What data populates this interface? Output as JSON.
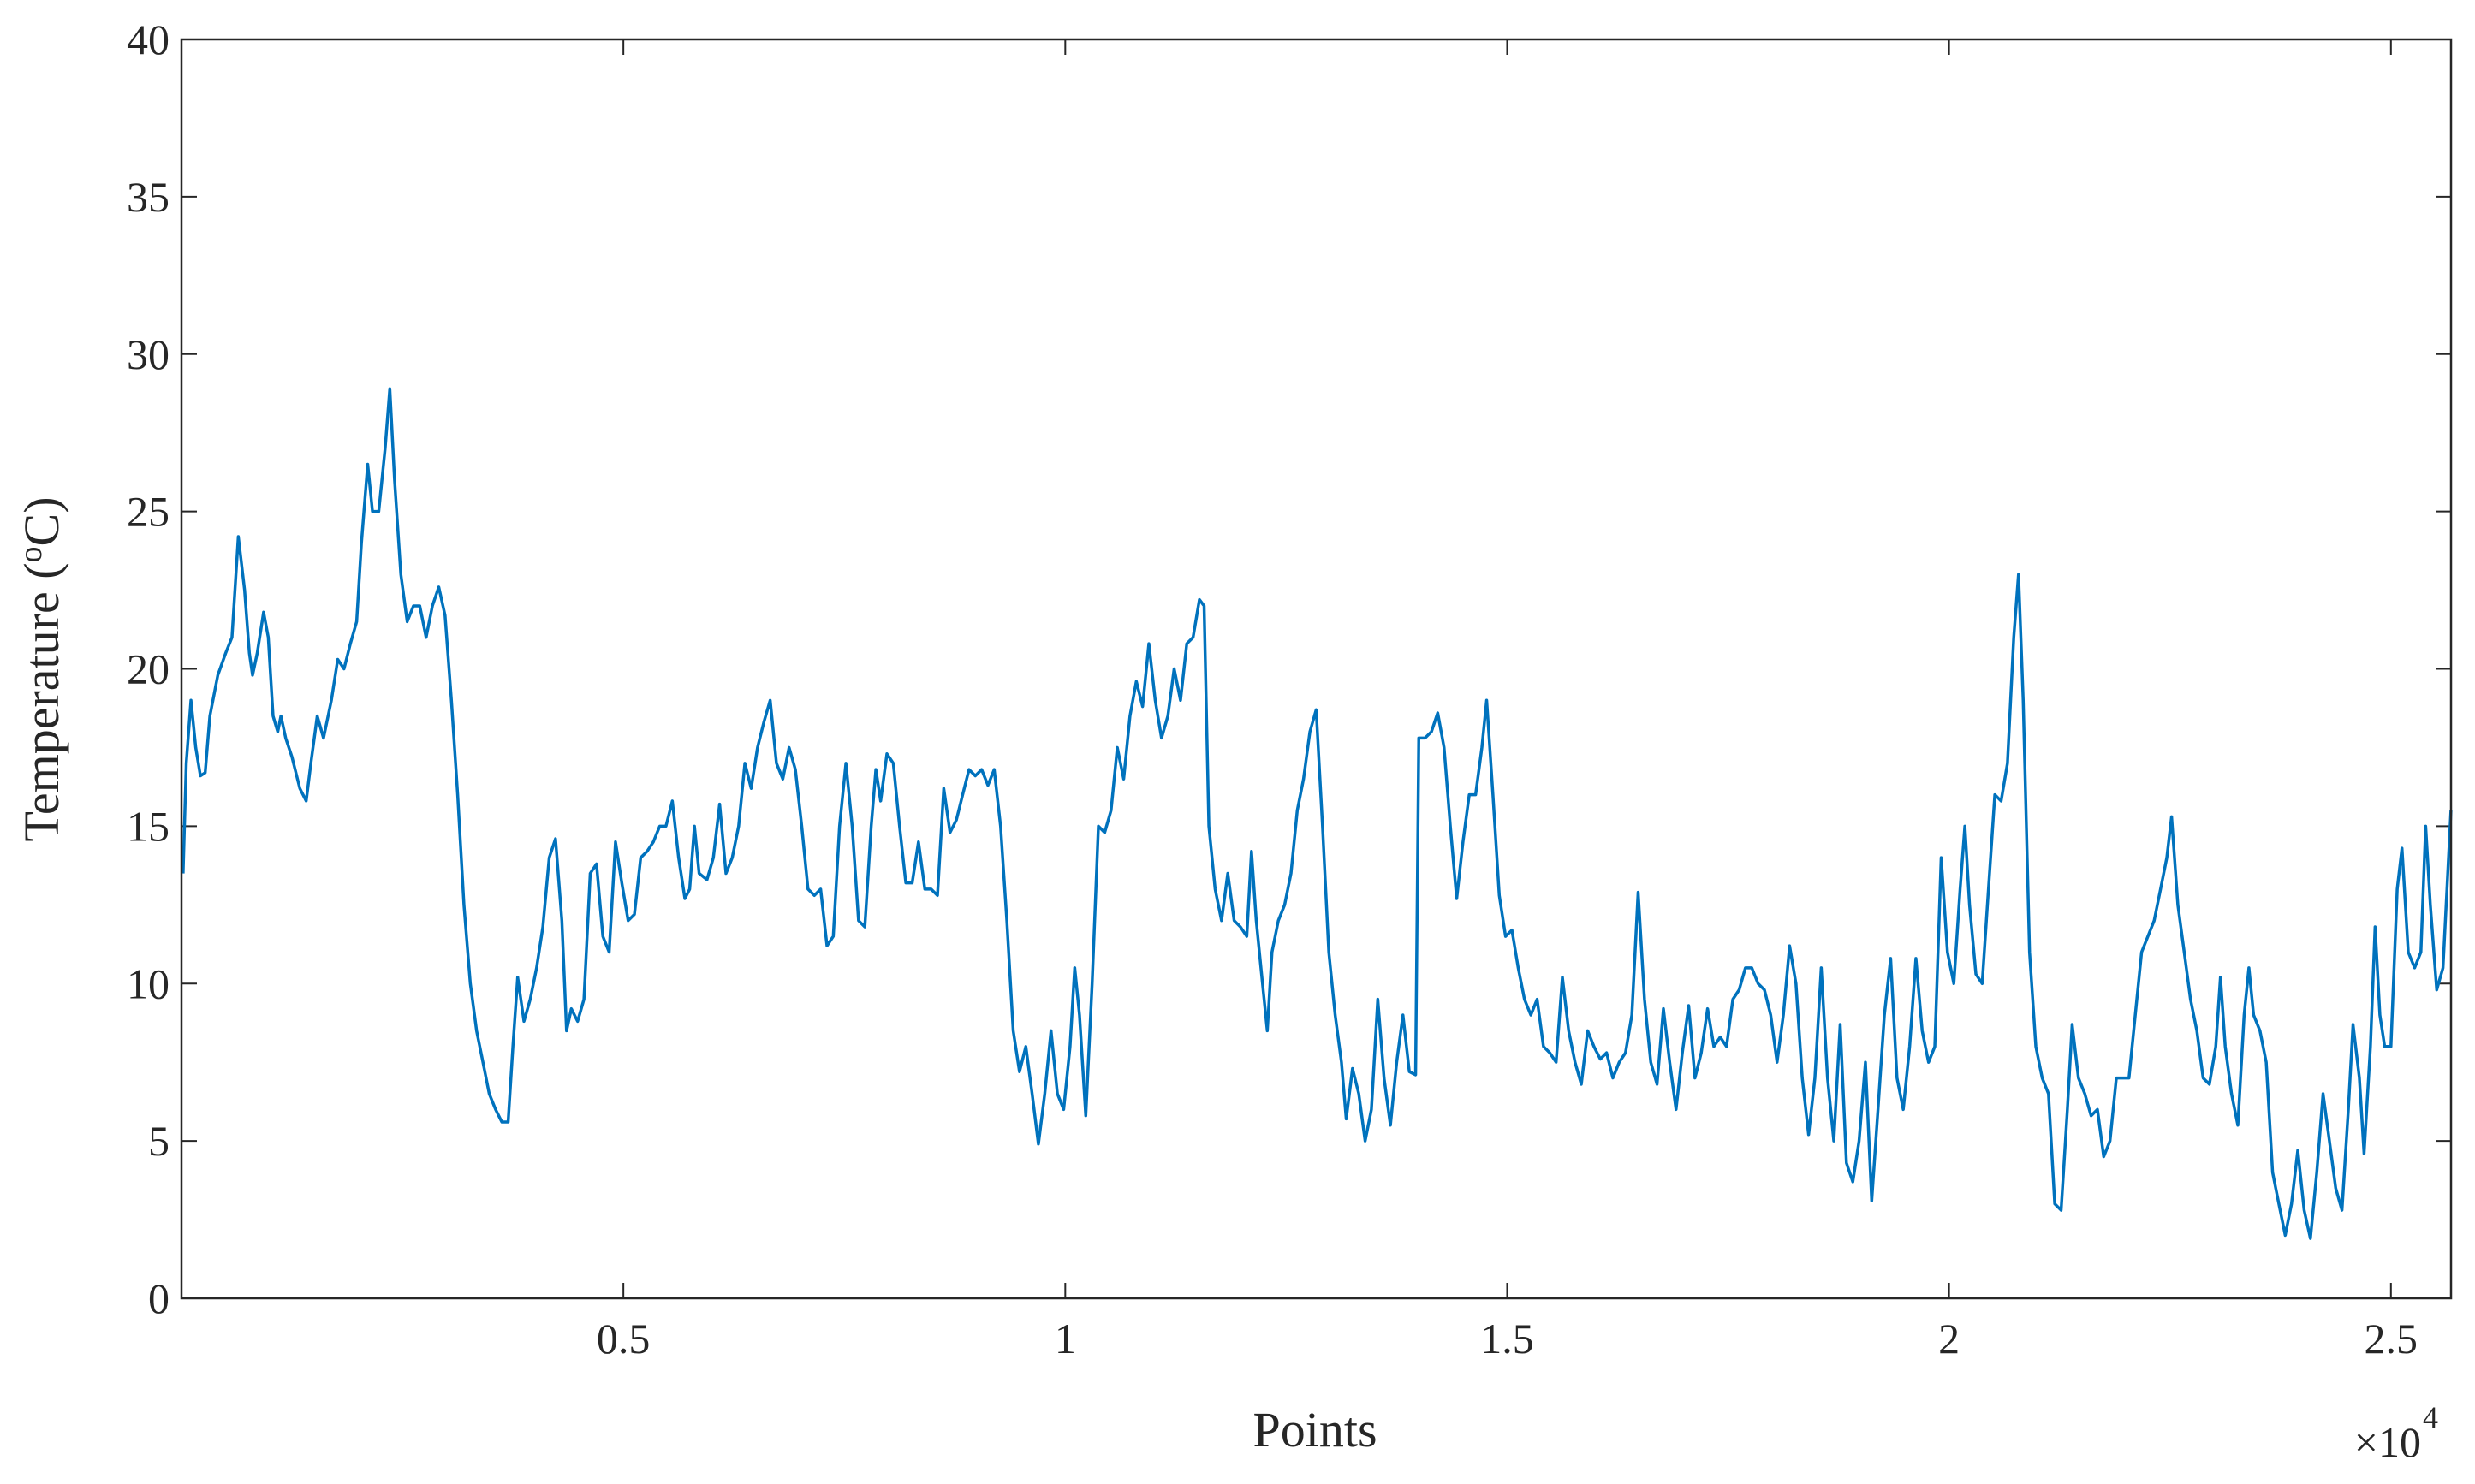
{
  "chart_data": {
    "type": "line",
    "xlabel": "Points",
    "ylabel_parts": [
      "Temperature (",
      "o",
      "C)"
    ],
    "x_exponent_base": "×10",
    "x_exponent": 4,
    "xlim": [
      0,
      25680
    ],
    "ylim": [
      0,
      40
    ],
    "xticks": [
      {
        "value": 5000,
        "label": "0.5"
      },
      {
        "value": 10000,
        "label": "1"
      },
      {
        "value": 15000,
        "label": "1.5"
      },
      {
        "value": 20000,
        "label": "2"
      },
      {
        "value": 25000,
        "label": "2.5"
      }
    ],
    "yticks": [
      0,
      5,
      10,
      15,
      20,
      25,
      30,
      35,
      40
    ],
    "grid": false,
    "x": [
      18,
      54,
      107,
      161,
      214,
      268,
      321,
      411,
      500,
      571,
      643,
      714,
      768,
      804,
      857,
      929,
      982,
      1036,
      1089,
      1125,
      1179,
      1250,
      1339,
      1411,
      1464,
      1536,
      1607,
      1696,
      1768,
      1839,
      1911,
      1982,
      2036,
      2107,
      2161,
      2232,
      2304,
      2357,
      2411,
      2482,
      2554,
      2625,
      2696,
      2768,
      2839,
      2911,
      2982,
      3054,
      3125,
      3196,
      3268,
      3339,
      3411,
      3482,
      3554,
      3625,
      3696,
      3750,
      3804,
      3875,
      3946,
      4018,
      4089,
      4161,
      4232,
      4304,
      4357,
      4411,
      4482,
      4554,
      4625,
      4696,
      4768,
      4839,
      4911,
      4982,
      5054,
      5125,
      5196,
      5268,
      5339,
      5411,
      5482,
      5554,
      5625,
      5696,
      5750,
      5804,
      5857,
      5946,
      6018,
      6089,
      6161,
      6232,
      6304,
      6375,
      6446,
      6518,
      6589,
      6661,
      6732,
      6804,
      6875,
      6946,
      7018,
      7089,
      7161,
      7232,
      7304,
      7375,
      7446,
      7518,
      7589,
      7661,
      7732,
      7804,
      7857,
      7911,
      7982,
      8054,
      8125,
      8196,
      8268,
      8339,
      8411,
      8482,
      8554,
      8625,
      8696,
      8768,
      8839,
      8911,
      8982,
      9054,
      9125,
      9196,
      9268,
      9339,
      9411,
      9482,
      9554,
      9625,
      9696,
      9768,
      9839,
      9911,
      9982,
      10054,
      10107,
      10161,
      10232,
      10304,
      10375,
      10446,
      10518,
      10589,
      10661,
      10732,
      10804,
      10875,
      10946,
      11018,
      11089,
      11161,
      11232,
      11304,
      11375,
      11446,
      11518,
      11571,
      11625,
      11696,
      11768,
      11839,
      11911,
      11982,
      12054,
      12107,
      12161,
      12232,
      12286,
      12339,
      12411,
      12482,
      12554,
      12625,
      12696,
      12768,
      12839,
      12911,
      12982,
      13054,
      13125,
      13179,
      13250,
      13321,
      13393,
      13464,
      13536,
      13607,
      13679,
      13750,
      13821,
      13893,
      13964,
      14000,
      14071,
      14143,
      14214,
      14286,
      14357,
      14429,
      14500,
      14571,
      14643,
      14714,
      14768,
      14839,
      14911,
      14982,
      15054,
      15125,
      15196,
      15268,
      15339,
      15411,
      15482,
      15554,
      15625,
      15696,
      15768,
      15839,
      15911,
      15982,
      16054,
      16125,
      16196,
      16268,
      16339,
      16411,
      16482,
      16554,
      16625,
      16696,
      16768,
      16839,
      16911,
      16982,
      17054,
      17125,
      17196,
      17268,
      17339,
      17411,
      17482,
      17554,
      17625,
      17696,
      17768,
      17839,
      17911,
      17982,
      18054,
      18125,
      18196,
      18268,
      18339,
      18411,
      18482,
      18554,
      18625,
      18696,
      18768,
      18839,
      18911,
      18982,
      19054,
      19125,
      19196,
      19268,
      19339,
      19411,
      19482,
      19554,
      19625,
      19696,
      19768,
      19839,
      19911,
      19982,
      20054,
      20125,
      20179,
      20232,
      20304,
      20375,
      20446,
      20518,
      20589,
      20661,
      20732,
      20786,
      20839,
      20911,
      20982,
      21054,
      21125,
      21196,
      21268,
      21339,
      21393,
      21464,
      21536,
      21607,
      21679,
      21750,
      21821,
      21893,
      21964,
      22036,
      22107,
      22179,
      22250,
      22321,
      22393,
      22464,
      22518,
      22589,
      22661,
      22732,
      22804,
      22875,
      22946,
      23018,
      23071,
      23125,
      23196,
      23268,
      23339,
      23393,
      23446,
      23518,
      23589,
      23661,
      23732,
      23804,
      23875,
      23946,
      24018,
      24089,
      24161,
      24232,
      24304,
      24375,
      24446,
      24518,
      24571,
      24643,
      24696,
      24768,
      24821,
      24875,
      24929,
      25000,
      25071,
      25125,
      25196,
      25268,
      25339,
      25393,
      25446,
      25518,
      25589,
      25679
    ],
    "series": [
      {
        "color": "#0072BD",
        "values": [
          13.5,
          17,
          19,
          17.5,
          16.6,
          16.7,
          18.5,
          19.8,
          20.5,
          21,
          24.2,
          22.5,
          20.5,
          19.8,
          20.5,
          21.8,
          21,
          18.5,
          18,
          18.5,
          17.8,
          17.2,
          16.2,
          15.8,
          17,
          18.5,
          17.8,
          19,
          20.3,
          20,
          20.8,
          21.5,
          24,
          26.5,
          25,
          25,
          27,
          28.9,
          26,
          23,
          21.5,
          22,
          22,
          21,
          22,
          22.6,
          21.7,
          19,
          16,
          12.5,
          10,
          8.5,
          7.5,
          6.5,
          6,
          5.6,
          5.6,
          8,
          10.2,
          8.8,
          9.5,
          10.5,
          11.8,
          14,
          14.6,
          12,
          8.5,
          9.2,
          8.8,
          9.5,
          13.5,
          13.8,
          11.5,
          11,
          14.5,
          13.2,
          12,
          12.2,
          14,
          14.2,
          14.5,
          15,
          15,
          15.8,
          14,
          12.7,
          13,
          15,
          13.5,
          13.3,
          14,
          15.7,
          13.5,
          14,
          15,
          17,
          16.2,
          17.5,
          18.3,
          19,
          17,
          16.5,
          17.5,
          16.8,
          15,
          13,
          12.8,
          13,
          11.2,
          11.5,
          15,
          17,
          15,
          12,
          11.8,
          15,
          16.8,
          15.8,
          17.3,
          17,
          15,
          13.2,
          13.2,
          14.5,
          13,
          13,
          12.8,
          16.2,
          14.8,
          15.2,
          16,
          16.8,
          16.6,
          16.8,
          16.3,
          16.8,
          15,
          12,
          8.5,
          7.2,
          8,
          6.5,
          4.9,
          6.5,
          8.5,
          6.5,
          6,
          8,
          10.5,
          9,
          5.8,
          10,
          15,
          14.8,
          15.5,
          17.5,
          16.5,
          18.5,
          19.6,
          18.8,
          20.8,
          19,
          17.8,
          18.5,
          20,
          19,
          20.8,
          21,
          22.2,
          22,
          15,
          13,
          12,
          13.5,
          12,
          11.8,
          11.5,
          14.2,
          12,
          10,
          8.5,
          11,
          12,
          12.5,
          13.5,
          15.5,
          16.5,
          18,
          18.7,
          15,
          11,
          9,
          7.5,
          5.7,
          7.3,
          6.5,
          5,
          6,
          9.5,
          7,
          5.5,
          7.5,
          9,
          7.2,
          7.1,
          17.8,
          17.8,
          18,
          18.6,
          17.5,
          15,
          12.7,
          14.5,
          16,
          16,
          17.5,
          19,
          16,
          12.8,
          11.5,
          11.7,
          10.5,
          9.5,
          9,
          9.5,
          8,
          7.8,
          7.5,
          10.2,
          8.5,
          7.5,
          6.8,
          8.5,
          8,
          7.6,
          7.8,
          7,
          7.5,
          7.8,
          9,
          12.9,
          9.5,
          7.5,
          6.8,
          9.2,
          7.5,
          6,
          7.8,
          9.3,
          7,
          7.8,
          9.2,
          8,
          8.3,
          8,
          9.5,
          9.8,
          10.5,
          10.5,
          10,
          9.8,
          9,
          7.5,
          9,
          11.2,
          10,
          7,
          5.2,
          7,
          10.5,
          7,
          5,
          8.7,
          4.3,
          3.7,
          5,
          7.5,
          3.1,
          6,
          9,
          10.8,
          7,
          6,
          8,
          10.8,
          8.5,
          7.5,
          8,
          14,
          11,
          10,
          13,
          15,
          12.5,
          10.3,
          10,
          13,
          16,
          15.8,
          17,
          21,
          23,
          19,
          11,
          8,
          7,
          6.5,
          3,
          2.8,
          6,
          8.7,
          7,
          6.5,
          5.8,
          6,
          4.5,
          5,
          7,
          7,
          7,
          9,
          11,
          11.5,
          12,
          13,
          14,
          15.3,
          12.5,
          11,
          9.5,
          8.5,
          7,
          6.8,
          8,
          10.2,
          8,
          6.5,
          5.5,
          9,
          10.5,
          9,
          8.5,
          7.5,
          4,
          3,
          2,
          3,
          4.7,
          2.8,
          1.9,
          4,
          6.5,
          5,
          3.5,
          2.8,
          6,
          8.7,
          7,
          4.6,
          8,
          11.8,
          9,
          8,
          8,
          13,
          14.3,
          11,
          10.5,
          11,
          15,
          12.5,
          9.8,
          10.5,
          15.5
        ]
      }
    ]
  }
}
